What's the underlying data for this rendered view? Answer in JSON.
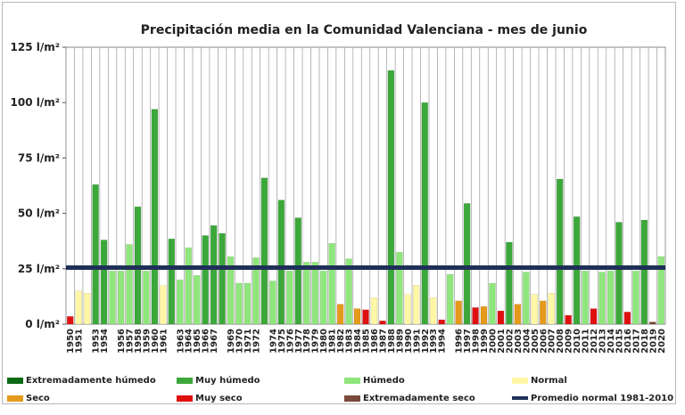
{
  "chart_data": {
    "type": "bar",
    "title": "Precipitación media en la Comunidad Valenciana - mes de junio",
    "xlabel": "",
    "ylabel": "",
    "ylim": [
      0,
      125
    ],
    "yticks": [
      0,
      25,
      50,
      75,
      100,
      125
    ],
    "ytick_labels": [
      "0 l/m²",
      "25 l/m²",
      "50 l/m²",
      "75 l/m²",
      "100 l/m²",
      "125 l/m²"
    ],
    "grid": "vertical",
    "legend_position": "bottom",
    "categories": [
      "1950",
      "1951",
      "1952",
      "1953",
      "1954",
      "1955",
      "1956",
      "1957",
      "1958",
      "1959",
      "1960",
      "1961",
      "1962",
      "1963",
      "1964",
      "1965",
      "1966",
      "1967",
      "1968",
      "1969",
      "1970",
      "1971",
      "1972",
      "1973",
      "1974",
      "1975",
      "1976",
      "1977",
      "1978",
      "1979",
      "1980",
      "1981",
      "1982",
      "1983",
      "1984",
      "1985",
      "1986",
      "1987",
      "1988",
      "1989",
      "1990",
      "1991",
      "1992",
      "1993",
      "1994",
      "1995",
      "1996",
      "1997",
      "1998",
      "1999",
      "2000",
      "2001",
      "2002",
      "2003",
      "2004",
      "2005",
      "2006",
      "2007",
      "2008",
      "2009",
      "2010",
      "2011",
      "2012",
      "2013",
      "2014",
      "2015",
      "2016",
      "2017",
      "2018",
      "2019",
      "2020"
    ],
    "x_labels_shown": [
      "1950",
      "1951",
      "1953",
      "1954",
      "1956",
      "1957",
      "1958",
      "1959",
      "1960",
      "1961",
      "1963",
      "1964",
      "1965",
      "1966",
      "1967",
      "1969",
      "1970",
      "1971",
      "1972",
      "1974",
      "1975",
      "1976",
      "1977",
      "1978",
      "1979",
      "1980",
      "1981",
      "1982",
      "1983",
      "1984",
      "1985",
      "1986",
      "1987",
      "1988",
      "1989",
      "1990",
      "1991",
      "1992",
      "1993",
      "1994",
      "1996",
      "1997",
      "1998",
      "1999",
      "2000",
      "2001",
      "2002",
      "2003",
      "2004",
      "2005",
      "2006",
      "2007",
      "2008",
      "2009",
      "2010",
      "2011",
      "2012",
      "2013",
      "2014",
      "2015",
      "2016",
      "2017",
      "2018",
      "2019",
      "2020"
    ],
    "values": [
      3.5,
      15,
      14,
      63,
      38,
      24,
      24,
      36,
      53,
      24,
      97,
      17.5,
      38.5,
      20,
      34.5,
      22,
      40,
      44.5,
      41,
      30.5,
      18.5,
      18.5,
      30,
      66,
      19.5,
      56,
      24,
      48,
      28,
      28,
      24,
      36.5,
      9,
      29.5,
      7,
      6.5,
      12,
      1.5,
      114.5,
      32.5,
      13.5,
      17.5,
      100,
      12,
      2,
      22.5,
      10.5,
      54.5,
      7.5,
      8,
      18.5,
      6,
      37,
      9,
      23.5,
      13.5,
      10.5,
      14,
      65.5,
      4,
      48.5,
      24,
      7,
      23.5,
      24,
      46,
      5.5,
      24,
      47,
      1,
      30.5
    ],
    "classes": [
      "muy_seco",
      "normal",
      "normal",
      "muy_humedo",
      "muy_humedo",
      "humedo",
      "humedo",
      "humedo",
      "muy_humedo",
      "humedo",
      "muy_humedo",
      "normal",
      "muy_humedo",
      "humedo",
      "humedo",
      "humedo",
      "muy_humedo",
      "muy_humedo",
      "muy_humedo",
      "humedo",
      "humedo",
      "humedo",
      "humedo",
      "muy_humedo",
      "humedo",
      "muy_humedo",
      "humedo",
      "muy_humedo",
      "humedo",
      "humedo",
      "humedo",
      "humedo",
      "seco",
      "humedo",
      "seco",
      "muy_seco",
      "normal",
      "muy_seco",
      "muy_humedo",
      "humedo",
      "normal",
      "normal",
      "muy_humedo",
      "normal",
      "muy_seco",
      "humedo",
      "seco",
      "muy_humedo",
      "muy_seco",
      "seco",
      "humedo",
      "muy_seco",
      "muy_humedo",
      "seco",
      "humedo",
      "normal",
      "seco",
      "normal",
      "muy_humedo",
      "muy_seco",
      "muy_humedo",
      "humedo",
      "muy_seco",
      "humedo",
      "humedo",
      "muy_humedo",
      "muy_seco",
      "humedo",
      "muy_humedo",
      "extremadamente_seco",
      "humedo"
    ],
    "reference_line": {
      "name": "Promedio normal 1981-2010",
      "value": 25.5,
      "color": "#1f3058"
    },
    "colors": {
      "extremadamente_humedo": "#0a6b14",
      "muy_humedo": "#3ca83a",
      "humedo": "#8fe67c",
      "normal": "#fff7a6",
      "seco": "#e59a1c",
      "muy_seco": "#e01010",
      "extremadamente_seco": "#7a4a3a"
    },
    "legend": [
      {
        "key": "extremadamente_humedo",
        "label": "Extremadamente húmedo",
        "color": "#0a6b14"
      },
      {
        "key": "muy_humedo",
        "label": "Muy húmedo",
        "color": "#3ca83a"
      },
      {
        "key": "humedo",
        "label": "Húmedo",
        "color": "#8fe67c"
      },
      {
        "key": "normal",
        "label": "Normal",
        "color": "#fff7a6"
      },
      {
        "key": "seco",
        "label": "Seco",
        "color": "#e59a1c"
      },
      {
        "key": "muy_seco",
        "label": "Muy seco",
        "color": "#e01010"
      },
      {
        "key": "extremadamente_seco",
        "label": "Extremadamente seco",
        "color": "#7a4a3a"
      },
      {
        "key": "promedio",
        "label": "Promedio normal 1981-2010",
        "color": "#1f3058"
      }
    ]
  }
}
